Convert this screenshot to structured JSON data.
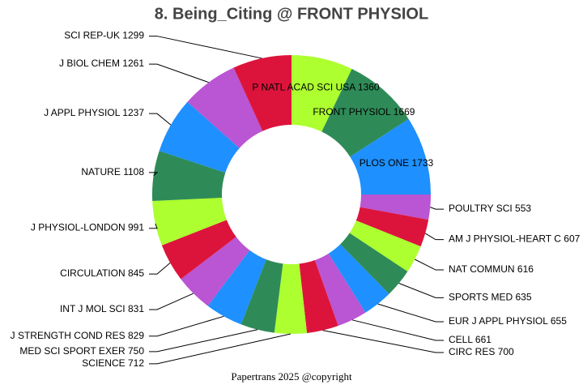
{
  "chart_data": {
    "type": "donut",
    "title": "8. Being_Citing @ FRONT PHYSIOL",
    "footer": "Papertrans 2025 @copyright",
    "categories": [
      "P NATL ACAD SCI USA",
      "FRONT PHYSIOL",
      "PLOS ONE",
      "POULTRY SCI",
      "AM J PHYSIOL-HEART C",
      "NAT COMMUN",
      "SPORTS MED",
      "EUR J APPL PHYSIOL",
      "CELL",
      "CIRC RES",
      "SCIENCE",
      "MED SCI SPORT EXER",
      "J STRENGTH COND RES",
      "INT J MOL SCI",
      "CIRCULATION",
      "J PHYSIOL-LONDON",
      "NATURE",
      "J APPL PHYSIOL",
      "J BIOL CHEM",
      "SCI REP-UK"
    ],
    "values": [
      1360,
      1669,
      1733,
      553,
      607,
      616,
      635,
      655,
      661,
      700,
      712,
      750,
      829,
      831,
      845,
      991,
      1108,
      1237,
      1261,
      1299
    ],
    "colors": [
      "#adff2f",
      "#2e8b57",
      "#1e90ff",
      "#ba55d3",
      "#dc143c",
      "#adff2f",
      "#2e8b57",
      "#1e90ff",
      "#ba55d3",
      "#dc143c",
      "#adff2f",
      "#2e8b57",
      "#1e90ff",
      "#ba55d3",
      "#dc143c",
      "#adff2f",
      "#2e8b57",
      "#1e90ff",
      "#ba55d3",
      "#dc143c"
    ]
  }
}
